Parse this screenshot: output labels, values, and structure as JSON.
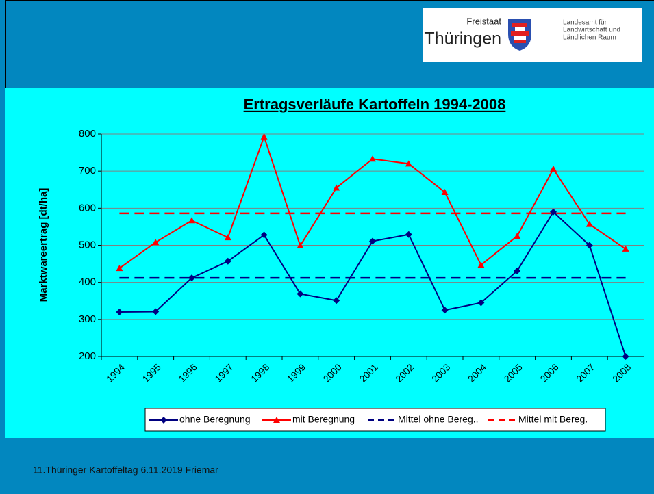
{
  "logo": {
    "top": "Freistaat",
    "name": "Thüringen",
    "agency": [
      "Landesamt für",
      "Landwirtschaft und",
      "Ländlichen Raum"
    ]
  },
  "footer": "11.Thüringer Kartoffeltag 6.11.2019 Friemar",
  "chart_data": {
    "type": "line",
    "title": "Ertragsverläufe Kartoffeln 1994-2008",
    "y_label": "Marktwareertrag  [dt/ha]",
    "categories": [
      "1994",
      "1995",
      "1996",
      "1997",
      "1998",
      "1999",
      "2000",
      "2001",
      "2002",
      "2003",
      "2004",
      "2005",
      "2006",
      "2007",
      "2008"
    ],
    "ylim": [
      200,
      800
    ],
    "yticks": [
      200,
      300,
      400,
      500,
      600,
      700,
      800
    ],
    "grid": true,
    "legend": "bottom",
    "series": [
      {
        "name": "ohne Beregnung",
        "color": "#000080",
        "marker": "diamond",
        "dashed": false,
        "values": [
          320,
          321,
          412,
          457,
          528,
          369,
          351,
          511,
          529,
          325,
          345,
          431,
          590,
          500,
          200
        ]
      },
      {
        "name": "mit Beregnung",
        "color": "#ff0000",
        "marker": "triangle",
        "dashed": false,
        "values": [
          438,
          508,
          567,
          521,
          793,
          499,
          655,
          733,
          720,
          643,
          447,
          525,
          706,
          557,
          490
        ]
      },
      {
        "name": "Mittel ohne Bereg..",
        "color": "#000080",
        "marker": "none",
        "dashed": true,
        "values": [
          412,
          412,
          412,
          412,
          412,
          412,
          412,
          412,
          412,
          412,
          412,
          412,
          412,
          412,
          412
        ]
      },
      {
        "name": "Mittel mit Bereg.",
        "color": "#ff0000",
        "marker": "none",
        "dashed": true,
        "values": [
          586,
          586,
          586,
          586,
          586,
          586,
          586,
          586,
          586,
          586,
          586,
          586,
          586,
          586,
          586
        ]
      }
    ]
  }
}
